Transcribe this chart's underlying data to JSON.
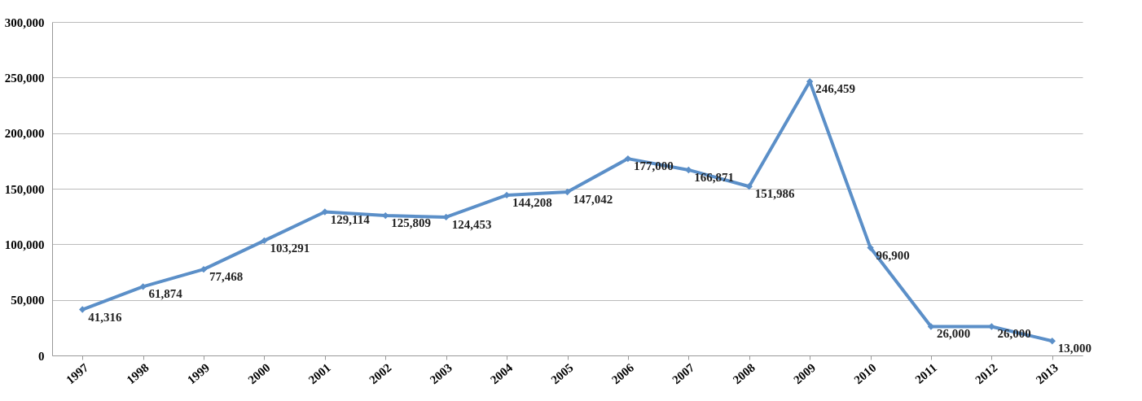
{
  "chart_data": {
    "type": "line",
    "categories": [
      "1997",
      "1998",
      "1999",
      "2000",
      "2001",
      "2002",
      "2003",
      "2004",
      "2005",
      "2006",
      "2007",
      "2008",
      "2009",
      "2010",
      "2011",
      "2012",
      "2013"
    ],
    "series": [
      {
        "color": "#5b8fc8",
        "values": [
          41316,
          61874,
          77468,
          103291,
          129114,
          125809,
          124453,
          144208,
          147042,
          177000,
          166871,
          151986,
          246459,
          96900,
          26000,
          26000,
          13000
        ]
      }
    ],
    "value_labels": [
      "41,316",
      "61,874",
      "77,468",
      "103,291",
      "129,114",
      "125,809",
      "124,453",
      "144,208",
      "147,042",
      "177,000",
      "166,871",
      "151,986",
      "246,459",
      "96,900",
      "26,000",
      "26,000",
      "13,000"
    ],
    "ylim": [
      0,
      300000
    ],
    "yticks": [
      0,
      {
        "value": 50000,
        "label": "50,000"
      },
      {
        "value": 100000,
        "label": "100,000"
      },
      {
        "value": 150000,
        "label": "150,000"
      },
      {
        "value": 200000,
        "label": "200,000"
      },
      {
        "value": 250000,
        "label": "250,000"
      },
      {
        "value": 300000,
        "label": "300,000"
      }
    ],
    "grid": "y",
    "marker": "diamond",
    "line_style": "solid"
  }
}
